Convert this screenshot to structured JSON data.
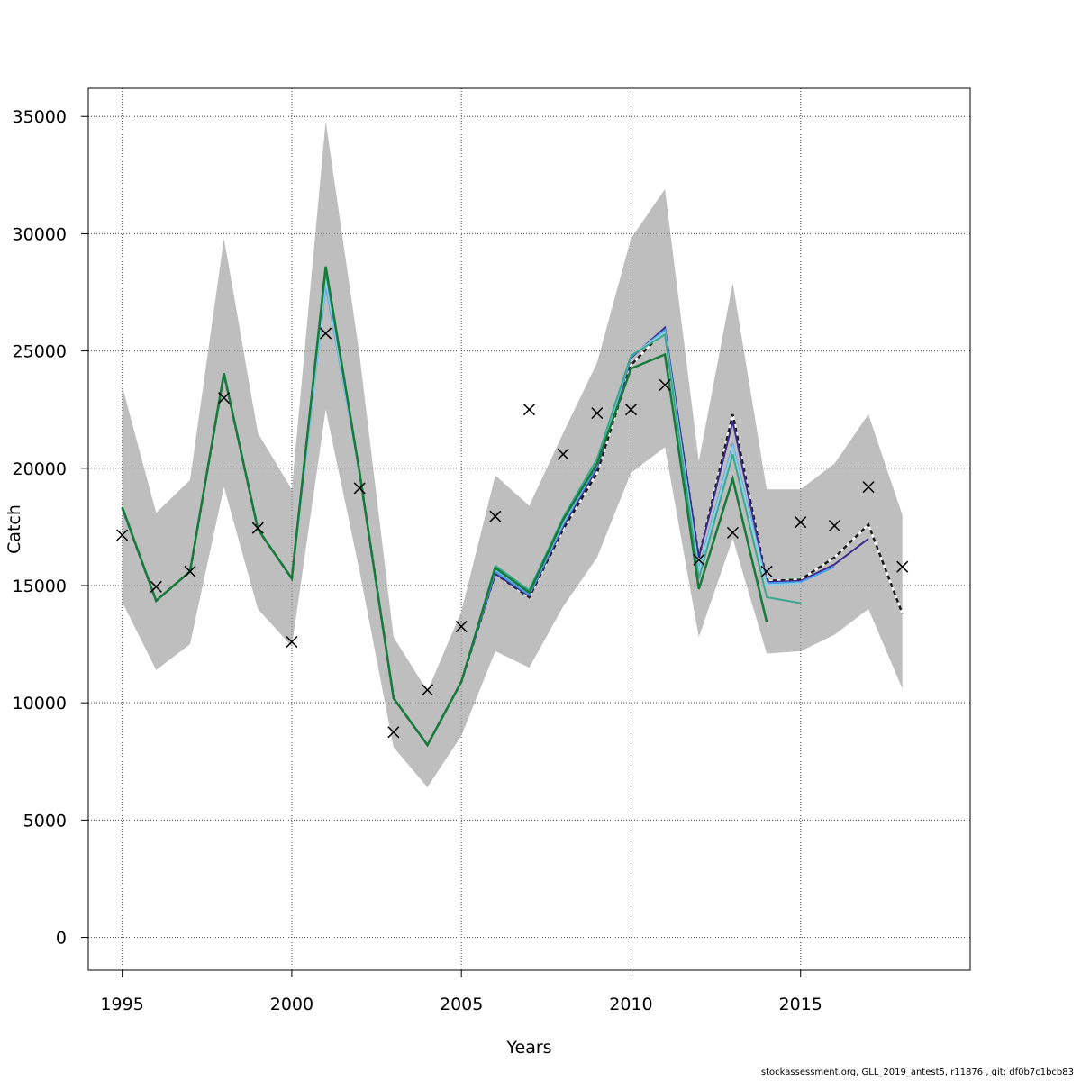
{
  "chart_data": {
    "type": "line",
    "title": "",
    "xlabel": "Years",
    "ylabel": "Catch",
    "xlim": [
      1994,
      2020
    ],
    "ylim": [
      -1400,
      36200
    ],
    "x_ticks": [
      1995,
      2000,
      2005,
      2010,
      2015
    ],
    "y_ticks": [
      0,
      5000,
      10000,
      15000,
      20000,
      25000,
      30000,
      35000
    ],
    "grid": true,
    "legend": "none",
    "colors": {
      "band": "#bebebe",
      "obs": "#000000",
      "grid": "#555555"
    },
    "uncertainty_band": {
      "x": [
        1995,
        1996,
        1997,
        1998,
        1999,
        2000,
        2001,
        2002,
        2003,
        2004,
        2005,
        2006,
        2007,
        2008,
        2009,
        2010,
        2011,
        2012,
        2013,
        2014,
        2015,
        2016,
        2017,
        2018
      ],
      "upper": [
        23500,
        18100,
        19500,
        29800,
        21500,
        19100,
        34800,
        24800,
        12800,
        10500,
        13900,
        19700,
        18400,
        21500,
        24500,
        29800,
        31900,
        20300,
        27900,
        19100,
        19100,
        20200,
        22300,
        18000
      ],
      "lower": [
        14300,
        11400,
        12500,
        19200,
        14000,
        12400,
        22500,
        15600,
        8100,
        6400,
        8600,
        12200,
        11500,
        14100,
        16200,
        19800,
        20900,
        12800,
        17000,
        12100,
        12200,
        12900,
        14000,
        10600
      ]
    },
    "observed": {
      "x": [
        1995,
        1996,
        1997,
        1998,
        1999,
        2000,
        2001,
        2002,
        2003,
        2004,
        2005,
        2006,
        2007,
        2008,
        2009,
        2010,
        2011,
        2012,
        2013,
        2014,
        2015,
        2016,
        2017,
        2018
      ],
      "y": [
        17150,
        14950,
        15600,
        23000,
        17450,
        12600,
        25750,
        19150,
        8750,
        10550,
        13250,
        17950,
        22500,
        20600,
        22350,
        22500,
        23550,
        16100,
        17250,
        15600,
        17700,
        17550,
        19200,
        15800
      ]
    },
    "series": [
      {
        "color": "#1a1a1a",
        "dashed": true,
        "x": [
          1995,
          1996,
          1997,
          1998,
          1999,
          2000,
          2001,
          2002,
          2003,
          2004,
          2005,
          2006,
          2007,
          2008,
          2009,
          2010,
          2011,
          2012,
          2013,
          2014,
          2015,
          2016,
          2017,
          2018
        ],
        "y": [
          18300,
          14350,
          15600,
          24000,
          17400,
          15300,
          28500,
          19800,
          10200,
          8200,
          10900,
          15500,
          14500,
          17400,
          19800,
          24400,
          25900,
          16200,
          22300,
          15200,
          15250,
          16200,
          17600,
          13800
        ]
      },
      {
        "color": "#3c2a8c",
        "dashed": false,
        "x": [
          1995,
          1996,
          1997,
          1998,
          1999,
          2000,
          2001,
          2002,
          2003,
          2004,
          2005,
          2006,
          2007,
          2008,
          2009,
          2010,
          2011,
          2012,
          2013,
          2014,
          2015,
          2016,
          2017
        ],
        "y": [
          18300,
          14350,
          15600,
          24000,
          17400,
          15300,
          28500,
          19800,
          10200,
          8200,
          10900,
          15500,
          14550,
          17500,
          20000,
          24700,
          26000,
          16200,
          22000,
          15150,
          15200,
          15900,
          17000
        ]
      },
      {
        "color": "#4a9ee8",
        "dashed": false,
        "x": [
          1995,
          1996,
          1997,
          1998,
          1999,
          2000,
          2001,
          2002,
          2003,
          2004,
          2005,
          2006,
          2007,
          2008,
          2009,
          2010,
          2011,
          2012,
          2013,
          2014,
          2015,
          2016
        ],
        "y": [
          18300,
          14350,
          15600,
          24000,
          17400,
          15300,
          27800,
          19800,
          10200,
          8200,
          10900,
          15600,
          14600,
          17600,
          20100,
          24750,
          25900,
          15700,
          21000,
          15100,
          15150,
          15800
        ]
      },
      {
        "color": "#8ecfe6",
        "dashed": false,
        "x": [
          1995,
          1996,
          1997,
          1998,
          1999,
          2000,
          2001,
          2002,
          2003,
          2004,
          2005,
          2006,
          2007,
          2008,
          2009,
          2010,
          2011,
          2012,
          2013,
          2014,
          2015
        ],
        "y": [
          18300,
          14350,
          15600,
          24000,
          17400,
          15300,
          28000,
          19800,
          10200,
          8200,
          10900,
          15700,
          14700,
          17700,
          20200,
          24800,
          25800,
          15600,
          20900,
          15000,
          15100
        ]
      },
      {
        "color": "#3aa88c",
        "dashed": false,
        "x": [
          1995,
          1996,
          1997,
          1998,
          1999,
          2000,
          2001,
          2002,
          2003,
          2004,
          2005,
          2006,
          2007,
          2008,
          2009,
          2010,
          2011,
          2012,
          2013,
          2014,
          2015
        ],
        "y": [
          18300,
          14350,
          15600,
          24000,
          17400,
          15300,
          28400,
          19800,
          10200,
          8200,
          10900,
          15850,
          14800,
          17900,
          20400,
          24800,
          25700,
          15300,
          20600,
          14500,
          14250
        ]
      },
      {
        "color": "#157a3a",
        "dashed": false,
        "x": [
          1995,
          1996,
          1997,
          1998,
          1999,
          2000,
          2001,
          2002,
          2003,
          2004,
          2005,
          2006,
          2007,
          2008,
          2009,
          2010,
          2011,
          2012,
          2013,
          2014
        ],
        "y": [
          18350,
          14350,
          15600,
          24050,
          17400,
          15300,
          28600,
          19800,
          10200,
          8200,
          10900,
          15750,
          14700,
          17800,
          20200,
          24250,
          24850,
          14850,
          19550,
          13450
        ]
      }
    ]
  },
  "footer": "stockassessment.org, GLL_2019_antest5, r11876 , git: df0b7c1bcb83"
}
